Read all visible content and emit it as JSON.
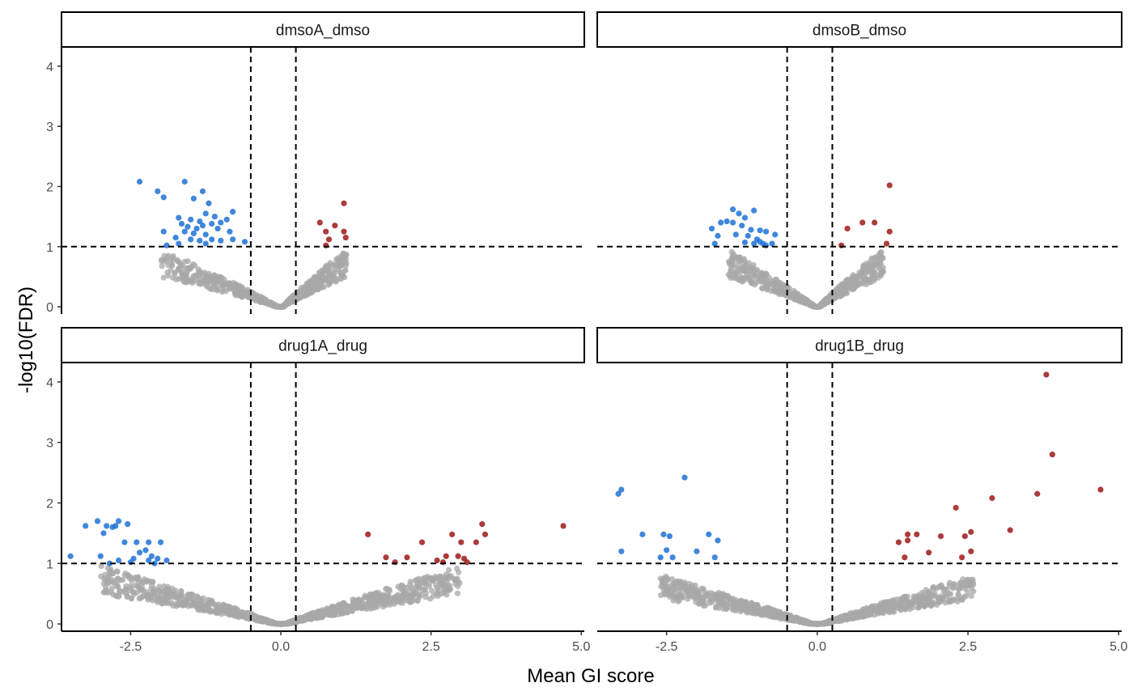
{
  "chart_data": {
    "type": "scatter",
    "subtype": "faceted volcano plot",
    "xlabel": "Mean GI score",
    "ylabel": "-log10(FDR)",
    "xlim": [
      -3.65,
      5.05
    ],
    "ylim": [
      -0.12,
      4.32
    ],
    "xticks": [
      -2.5,
      0.0,
      2.5,
      5.0
    ],
    "xtick_labels": [
      "-2.5",
      "0.0",
      "2.5",
      "5.0"
    ],
    "yticks": [
      0,
      1,
      2,
      3,
      4
    ],
    "ytick_labels": [
      "0",
      "1",
      "2",
      "3",
      "4"
    ],
    "thresholds": {
      "x_lines": [
        -0.5,
        0.25
      ],
      "y_line": 1
    },
    "colors": {
      "negative": "#1f72d6",
      "positive": "#9e1a1a",
      "nonsignificant": "#a8a8a8",
      "strip_bg": "#ffffff",
      "frame": "#000000"
    },
    "background_cloud": {
      "description": "dense grey V-shaped band of non-significant points, -log10(FDR) below 1",
      "panels": [
        {
          "x_range": [
            -2.0,
            1.1
          ],
          "peak_y": 0.95,
          "count": 700
        },
        {
          "x_range": [
            -1.5,
            1.1
          ],
          "peak_y": 0.95,
          "count": 700
        },
        {
          "x_range": [
            -3.0,
            3.0
          ],
          "peak_y": 0.95,
          "count": 1100
        },
        {
          "x_range": [
            -2.6,
            2.6
          ],
          "peak_y": 0.8,
          "count": 1100
        }
      ]
    },
    "facets": [
      {
        "label": "dmsoA_dmso",
        "negative": [
          [
            -2.35,
            2.08
          ],
          [
            -2.05,
            1.92
          ],
          [
            -1.95,
            1.82
          ],
          [
            -1.6,
            2.08
          ],
          [
            -1.3,
            1.92
          ],
          [
            -1.45,
            1.8
          ],
          [
            -1.2,
            1.72
          ],
          [
            -1.25,
            1.55
          ],
          [
            -1.1,
            1.5
          ],
          [
            -0.8,
            1.58
          ],
          [
            -1.7,
            1.48
          ],
          [
            -1.5,
            1.45
          ],
          [
            -1.35,
            1.42
          ],
          [
            -1.15,
            1.38
          ],
          [
            -1.0,
            1.4
          ],
          [
            -0.9,
            1.45
          ],
          [
            -1.65,
            1.38
          ],
          [
            -1.55,
            1.33
          ],
          [
            -1.4,
            1.3
          ],
          [
            -1.3,
            1.35
          ],
          [
            -1.05,
            1.3
          ],
          [
            -0.85,
            1.25
          ],
          [
            -1.95,
            1.25
          ],
          [
            -1.6,
            1.25
          ],
          [
            -1.45,
            1.22
          ],
          [
            -1.25,
            1.2
          ],
          [
            -1.75,
            1.15
          ],
          [
            -1.5,
            1.12
          ],
          [
            -1.35,
            1.1
          ],
          [
            -1.15,
            1.12
          ],
          [
            -1.0,
            1.1
          ],
          [
            -0.8,
            1.12
          ],
          [
            -1.7,
            1.05
          ],
          [
            -1.25,
            1.05
          ],
          [
            -0.6,
            1.08
          ],
          [
            -1.9,
            1.02
          ]
        ],
        "positive": [
          [
            0.65,
            1.4
          ],
          [
            0.9,
            1.35
          ],
          [
            0.75,
            1.25
          ],
          [
            1.05,
            1.25
          ],
          [
            1.05,
            1.72
          ],
          [
            0.8,
            1.12
          ],
          [
            1.08,
            1.15
          ],
          [
            0.75,
            1.02
          ]
        ]
      },
      {
        "label": "dmsoB_dmso",
        "negative": [
          [
            -1.75,
            1.3
          ],
          [
            -1.6,
            1.4
          ],
          [
            -1.5,
            1.42
          ],
          [
            -1.4,
            1.4
          ],
          [
            -1.4,
            1.62
          ],
          [
            -1.3,
            1.55
          ],
          [
            -1.2,
            1.48
          ],
          [
            -1.05,
            1.6
          ],
          [
            -1.25,
            1.35
          ],
          [
            -1.1,
            1.28
          ],
          [
            -0.95,
            1.27
          ],
          [
            -0.85,
            1.25
          ],
          [
            -1.65,
            1.18
          ],
          [
            -1.35,
            1.2
          ],
          [
            -1.15,
            1.18
          ],
          [
            -1.0,
            1.12
          ],
          [
            -0.7,
            1.2
          ],
          [
            -1.2,
            1.07
          ],
          [
            -1.05,
            1.05
          ],
          [
            -0.9,
            1.05
          ],
          [
            -0.75,
            1.05
          ],
          [
            -0.85,
            1.02
          ],
          [
            -1.7,
            1.05
          ],
          [
            -0.95,
            1.08
          ]
        ],
        "positive": [
          [
            1.2,
            2.02
          ],
          [
            0.75,
            1.4
          ],
          [
            0.95,
            1.4
          ],
          [
            0.5,
            1.3
          ],
          [
            1.2,
            1.25
          ],
          [
            1.15,
            1.05
          ],
          [
            0.4,
            1.02
          ]
        ]
      },
      {
        "label": "drug1A_drug",
        "negative": [
          [
            -3.5,
            1.12
          ],
          [
            -3.25,
            1.62
          ],
          [
            -3.05,
            1.7
          ],
          [
            -2.9,
            1.62
          ],
          [
            -2.7,
            1.7
          ],
          [
            -2.8,
            1.6
          ],
          [
            -2.95,
            1.5
          ],
          [
            -2.75,
            1.62
          ],
          [
            -2.55,
            1.65
          ],
          [
            -3.0,
            1.12
          ],
          [
            -2.7,
            1.05
          ],
          [
            -2.6,
            1.35
          ],
          [
            -2.4,
            1.35
          ],
          [
            -2.2,
            1.35
          ],
          [
            -2.0,
            1.35
          ],
          [
            -2.35,
            1.18
          ],
          [
            -2.15,
            1.12
          ],
          [
            -2.25,
            1.22
          ],
          [
            -2.45,
            1.08
          ],
          [
            -2.2,
            1.05
          ],
          [
            -2.05,
            1.08
          ],
          [
            -1.9,
            1.05
          ],
          [
            -2.1,
            1.0
          ],
          [
            -2.85,
            1.0
          ],
          [
            -2.5,
            1.02
          ]
        ],
        "positive": [
          [
            4.7,
            1.62
          ],
          [
            3.35,
            1.65
          ],
          [
            3.4,
            1.48
          ],
          [
            2.85,
            1.48
          ],
          [
            3.0,
            1.35
          ],
          [
            3.25,
            1.35
          ],
          [
            2.35,
            1.35
          ],
          [
            1.45,
            1.48
          ],
          [
            1.75,
            1.1
          ],
          [
            2.1,
            1.1
          ],
          [
            2.75,
            1.12
          ],
          [
            2.95,
            1.12
          ],
          [
            3.05,
            1.08
          ],
          [
            1.9,
            1.02
          ],
          [
            2.7,
            1.02
          ],
          [
            2.6,
            1.05
          ],
          [
            3.1,
            1.02
          ]
        ]
      },
      {
        "label": "drug1B_drug",
        "negative": [
          [
            -3.3,
            2.15
          ],
          [
            -3.25,
            2.22
          ],
          [
            -3.25,
            1.2
          ],
          [
            -2.2,
            2.42
          ],
          [
            -2.9,
            1.48
          ],
          [
            -2.55,
            1.48
          ],
          [
            -2.45,
            1.45
          ],
          [
            -1.8,
            1.48
          ],
          [
            -1.65,
            1.38
          ],
          [
            -2.5,
            1.22
          ],
          [
            -2.0,
            1.2
          ],
          [
            -2.4,
            1.1
          ],
          [
            -2.6,
            1.1
          ],
          [
            -1.7,
            1.1
          ]
        ],
        "positive": [
          [
            3.8,
            4.12
          ],
          [
            3.9,
            2.8
          ],
          [
            4.7,
            2.22
          ],
          [
            3.65,
            2.15
          ],
          [
            2.9,
            2.08
          ],
          [
            2.3,
            1.92
          ],
          [
            3.2,
            1.55
          ],
          [
            2.55,
            1.52
          ],
          [
            2.45,
            1.45
          ],
          [
            1.5,
            1.48
          ],
          [
            1.65,
            1.48
          ],
          [
            1.35,
            1.35
          ],
          [
            1.5,
            1.38
          ],
          [
            2.05,
            1.45
          ],
          [
            1.85,
            1.18
          ],
          [
            2.55,
            1.2
          ],
          [
            1.45,
            1.1
          ],
          [
            2.4,
            1.1
          ]
        ]
      }
    ]
  }
}
